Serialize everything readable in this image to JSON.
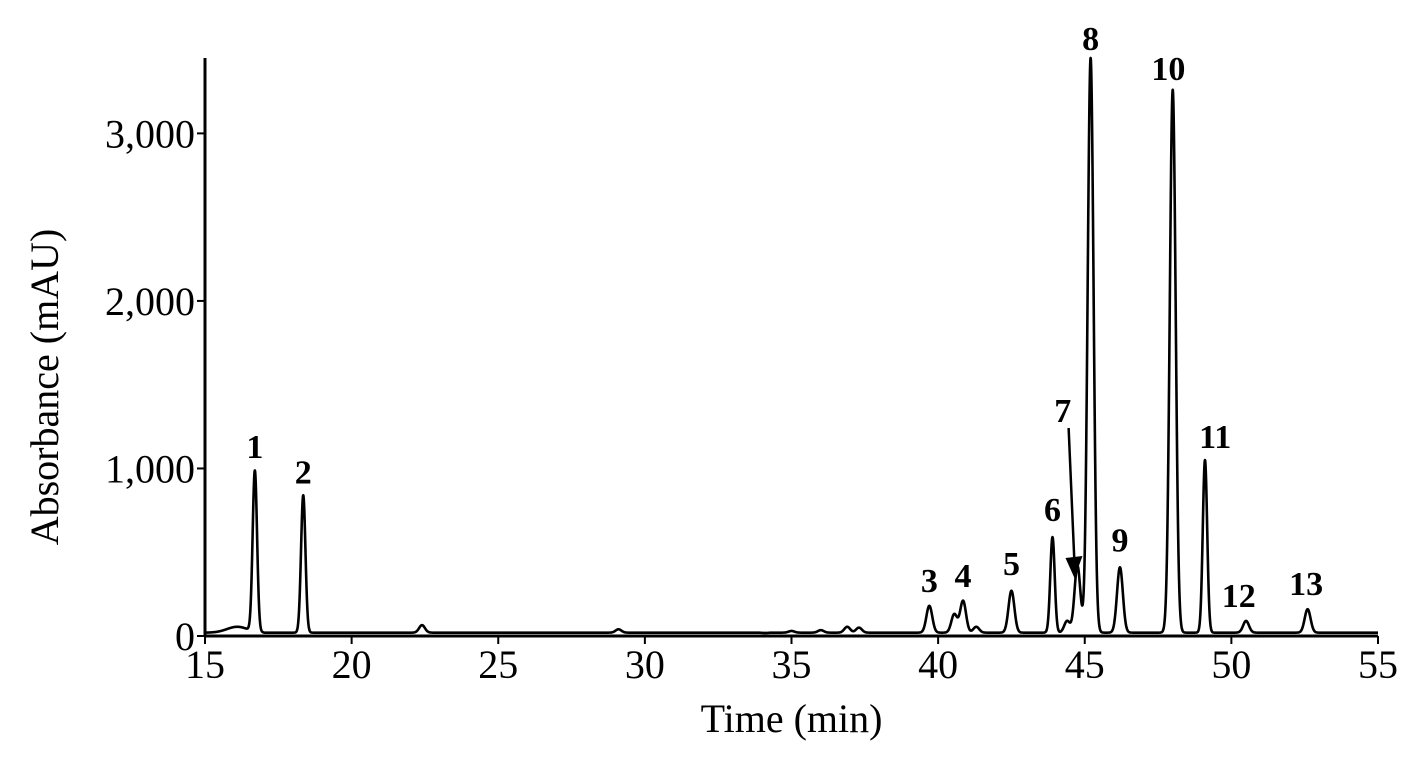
{
  "chart_data": {
    "type": "line",
    "title": "",
    "xlabel": "Time (min)",
    "ylabel": "Absorbance (mAU)",
    "xlim": [
      15,
      55
    ],
    "ylim": [
      0,
      3450
    ],
    "x_ticks": [
      15,
      20,
      25,
      30,
      35,
      40,
      45,
      50,
      55
    ],
    "x_tick_labels": [
      "15",
      "20",
      "25",
      "30",
      "35",
      "40",
      "45",
      "50",
      "55"
    ],
    "y_ticks": [
      0,
      1000,
      2000,
      3000
    ],
    "y_tick_labels": [
      "0",
      "1,000",
      "2,000",
      "3,000"
    ],
    "grid": false,
    "baseline": 20,
    "series": [
      {
        "color": "#000000",
        "peaks": [
          {
            "label": "1",
            "x": 16.7,
            "y": 980
          },
          {
            "label": "2",
            "x": 18.35,
            "y": 840
          },
          {
            "label": "",
            "x": 22.4,
            "y": 65
          },
          {
            "label": "",
            "x": 29.1,
            "y": 40
          },
          {
            "label": "",
            "x": 34.1,
            "y": 18
          },
          {
            "label": "",
            "x": 35.0,
            "y": 30
          },
          {
            "label": "",
            "x": 36.0,
            "y": 35
          },
          {
            "label": "",
            "x": 36.9,
            "y": 55
          },
          {
            "label": "",
            "x": 37.3,
            "y": 50
          },
          {
            "label": "3",
            "x": 39.7,
            "y": 180
          },
          {
            "label": "",
            "x": 40.55,
            "y": 130
          },
          {
            "label": "4",
            "x": 40.85,
            "y": 210
          },
          {
            "label": "",
            "x": 41.3,
            "y": 55
          },
          {
            "label": "5",
            "x": 42.5,
            "y": 270
          },
          {
            "label": "6",
            "x": 43.9,
            "y": 590
          },
          {
            "label": "",
            "x": 44.4,
            "y": 90
          },
          {
            "label": "7",
            "x": 44.75,
            "y": 420
          },
          {
            "label": "8",
            "x": 45.2,
            "y": 3450
          },
          {
            "label": "9",
            "x": 46.2,
            "y": 410
          },
          {
            "label": "10",
            "x": 48.0,
            "y": 3260
          },
          {
            "label": "11",
            "x": 49.1,
            "y": 1050
          },
          {
            "label": "12",
            "x": 50.5,
            "y": 90
          },
          {
            "label": "13",
            "x": 52.6,
            "y": 160
          }
        ]
      }
    ]
  }
}
